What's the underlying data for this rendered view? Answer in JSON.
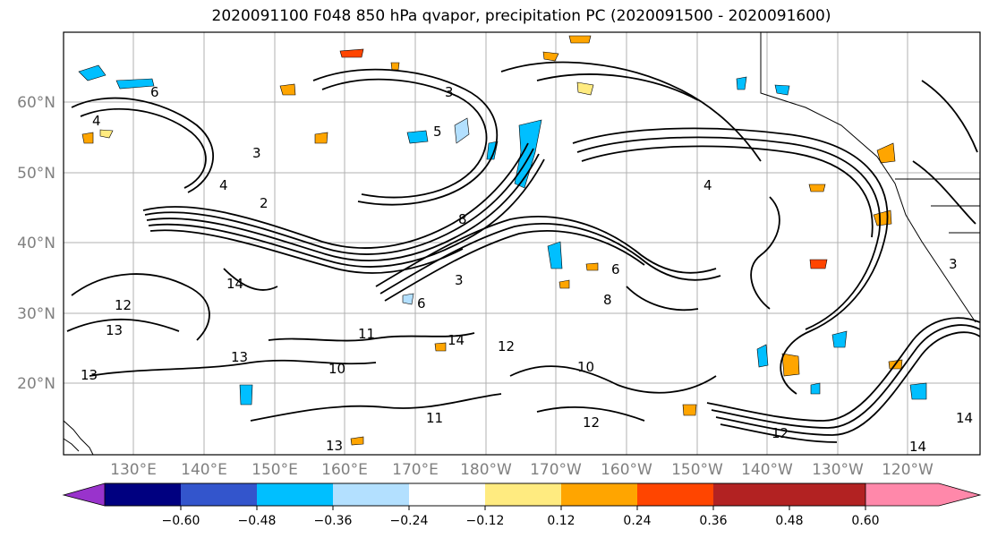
{
  "title": "2020091100 F048 850 hPa qvapor, precipitation PC (2020091500 - 2020091600)",
  "map": {
    "lat_labels": [
      "60°N",
      "50°N",
      "40°N",
      "30°N",
      "20°N"
    ],
    "lon_labels": [
      "130°E",
      "140°E",
      "150°E",
      "160°E",
      "170°E",
      "180°W",
      "170°W",
      "160°W",
      "150°W",
      "140°W",
      "130°W",
      "120°W"
    ],
    "contour_labels": [
      "6",
      "4",
      "3",
      "2",
      "4",
      "3",
      "5",
      "8",
      "6",
      "3",
      "4",
      "14",
      "12",
      "13",
      "13",
      "10",
      "14",
      "12",
      "11",
      "11",
      "13",
      "12",
      "13",
      "14",
      "14",
      "6",
      "3",
      "8",
      "10",
      "12"
    ]
  },
  "colorbar": {
    "tick_labels": [
      "−0.60",
      "−0.48",
      "−0.36",
      "−0.24",
      "−0.12",
      "0.12",
      "0.24",
      "0.36",
      "0.48",
      "0.60"
    ],
    "colors": [
      "#9933cc",
      "#000080",
      "#3355cc",
      "#00bfff",
      "#b3e0ff",
      "#ffffff",
      "#ffeb80",
      "#ffa500",
      "#ff4500",
      "#b22222",
      "#ff88aa"
    ]
  }
}
